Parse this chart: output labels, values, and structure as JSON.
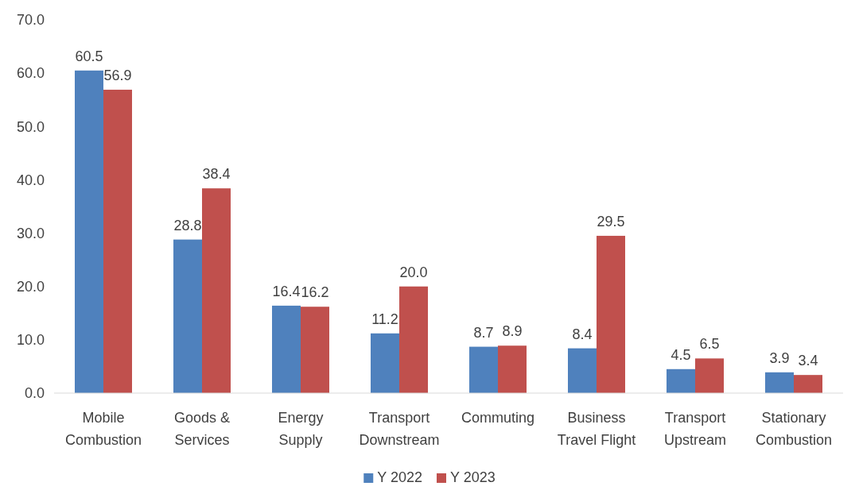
{
  "chart_data": {
    "type": "bar",
    "categories": [
      "Mobile Combustion",
      "Goods & Services",
      "Energy Supply",
      "Transport Downstream",
      "Commuting",
      "Business Travel Flight",
      "Transport Upstream",
      "Stationary Combustion"
    ],
    "series": [
      {
        "name": "Y 2022",
        "color": "#4f81bd",
        "values": [
          60.5,
          28.8,
          16.4,
          11.2,
          8.7,
          8.4,
          4.5,
          3.9
        ],
        "value_labels": [
          "60.5",
          "28.8",
          "16.4",
          "11.2",
          "8.7",
          "8.4",
          "4.5",
          "3.9"
        ]
      },
      {
        "name": "Y 2023",
        "color": "#c0504d",
        "values": [
          56.9,
          38.4,
          16.2,
          20.0,
          8.9,
          29.5,
          6.5,
          3.4
        ],
        "value_labels": [
          "56.9",
          "38.4",
          "16.2",
          "20.0",
          "8.9",
          "29.5",
          "6.5",
          "3.4"
        ]
      }
    ],
    "ylim": [
      0,
      70
    ],
    "yticks": [
      {
        "value": 0,
        "label": "0.0"
      },
      {
        "value": 10,
        "label": "10.0"
      },
      {
        "value": 20,
        "label": "20.0"
      },
      {
        "value": 30,
        "label": "30.0"
      },
      {
        "value": 40,
        "label": "40.0"
      },
      {
        "value": 50,
        "label": "50.0"
      },
      {
        "value": 60,
        "label": "60.0"
      },
      {
        "value": 70,
        "label": "70.0"
      }
    ],
    "grid": false,
    "legend": "bottom"
  }
}
